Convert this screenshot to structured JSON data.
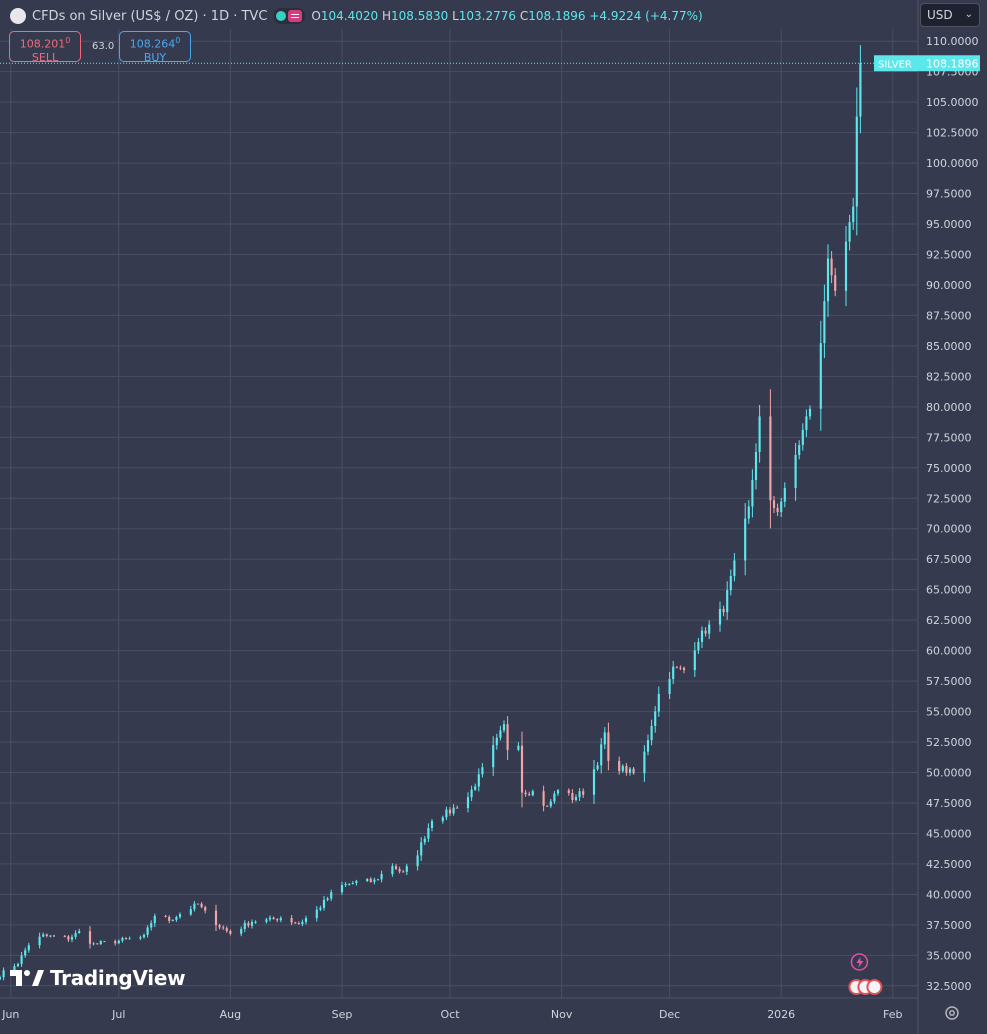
{
  "header": {
    "title": "CFDs on Silver (US$ / OZ) · 1D · TVC",
    "ohlc": [
      {
        "k": "O",
        "v": "104.4020"
      },
      {
        "k": "H",
        "v": "108.5830"
      },
      {
        "k": "L",
        "v": "103.2776"
      },
      {
        "k": "C",
        "v": "108.1896"
      }
    ],
    "change": "+4.9224 (+4.77%)"
  },
  "trade": {
    "sell_price": "108.201",
    "sell_sup": "0",
    "sell_label": "SELL",
    "buy_price": "108.264",
    "buy_sup": "0",
    "buy_label": "BUY",
    "spread": "63.0"
  },
  "currency": {
    "label": "USD"
  },
  "price_label": {
    "name": "SILVER",
    "value": "108.1896"
  },
  "brand": {
    "name": "TradingView"
  },
  "icons": [
    "settings-icon",
    "flash-icon",
    "events-icon",
    "tradingview-logo-icon"
  ],
  "colors": {
    "background": "#363a4e",
    "up": "#5ce7ec",
    "down": "#f2a5a7",
    "grid": "#4a4e62",
    "axis_text": "#d1d4dc",
    "price_tag": "#5ce7ec"
  },
  "chart_data": {
    "type": "candlestick",
    "title": "CFDs on Silver (US$ / OZ)",
    "y_axis": {
      "position": "right",
      "range": [
        31.5,
        111
      ],
      "ticks": [
        32.5,
        35,
        37.5,
        40,
        42.5,
        45,
        47.5,
        50,
        52.5,
        55,
        57.5,
        60,
        62.5,
        65,
        67.5,
        70,
        72.5,
        75,
        77.5,
        80,
        82.5,
        85,
        87.5,
        90,
        92.5,
        95,
        97.5,
        100,
        102.5,
        105,
        107.5,
        110
      ],
      "tick_labels": [
        "32.5000",
        "35.0000",
        "37.5000",
        "40.0000",
        "42.5000",
        "45.0000",
        "47.5000",
        "50.0000",
        "52.5000",
        "55.0000",
        "57.5000",
        "60.0000",
        "62.5000",
        "65.0000",
        "67.5000",
        "70.0000",
        "72.5000",
        "75.0000",
        "77.5000",
        "80.0000",
        "82.5000",
        "85.0000",
        "87.5000",
        "90.0000",
        "92.5000",
        "95.0000",
        "97.5000",
        "100.0000",
        "102.5000",
        "105.0000",
        "107.5000",
        "110.0000"
      ]
    },
    "x_axis": {
      "start": "2025-05-29",
      "end": "2026-02-08",
      "labels": [
        {
          "date": "2025-06-01",
          "text": "Jun"
        },
        {
          "date": "2025-07-01",
          "text": "Jul"
        },
        {
          "date": "2025-08-01",
          "text": "Aug"
        },
        {
          "date": "2025-09-01",
          "text": "Sep"
        },
        {
          "date": "2025-10-01",
          "text": "Oct"
        },
        {
          "date": "2025-11-01",
          "text": "Nov"
        },
        {
          "date": "2025-12-01",
          "text": "Dec"
        },
        {
          "date": "2026-01-01",
          "text": "2026"
        },
        {
          "date": "2026-02-01",
          "text": "Feb"
        }
      ]
    },
    "grid": true,
    "last_price": 108.1896,
    "close_anchors": [
      [
        "2025-05-29",
        33.4
      ],
      [
        "2025-06-03",
        34.4
      ],
      [
        "2025-06-06",
        35.9
      ],
      [
        "2025-06-10",
        36.6
      ],
      [
        "2025-06-17",
        36.4
      ],
      [
        "2025-06-20",
        36.9
      ],
      [
        "2025-06-24",
        35.9
      ],
      [
        "2025-07-01",
        36.2
      ],
      [
        "2025-07-08",
        36.5
      ],
      [
        "2025-07-11",
        38.3
      ],
      [
        "2025-07-15",
        37.9
      ],
      [
        "2025-07-18",
        38.4
      ],
      [
        "2025-07-23",
        39.2
      ],
      [
        "2025-07-25",
        38.5
      ],
      [
        "2025-07-29",
        37.4
      ],
      [
        "2025-08-01",
        36.8
      ],
      [
        "2025-08-07",
        37.8
      ],
      [
        "2025-08-12",
        37.9
      ],
      [
        "2025-08-15",
        38.1
      ],
      [
        "2025-08-20",
        37.6
      ],
      [
        "2025-08-25",
        38.7
      ],
      [
        "2025-08-29",
        40.0
      ],
      [
        "2025-09-01",
        40.7
      ],
      [
        "2025-09-05",
        41.0
      ],
      [
        "2025-09-10",
        41.1
      ],
      [
        "2025-09-15",
        42.4
      ],
      [
        "2025-09-18",
        41.7
      ],
      [
        "2025-09-22",
        43.4
      ],
      [
        "2025-09-26",
        46.2
      ],
      [
        "2025-10-01",
        46.8
      ],
      [
        "2025-10-06",
        48.0
      ],
      [
        "2025-10-09",
        49.6
      ],
      [
        "2025-10-13",
        52.0
      ],
      [
        "2025-10-16",
        53.8
      ],
      [
        "2025-10-17",
        52.0
      ],
      [
        "2025-10-20",
        52.5
      ],
      [
        "2025-10-21",
        48.5
      ],
      [
        "2025-10-24",
        48.4
      ],
      [
        "2025-10-28",
        47.1
      ],
      [
        "2025-10-31",
        48.7
      ],
      [
        "2025-11-04",
        47.9
      ],
      [
        "2025-11-07",
        48.4
      ],
      [
        "2025-11-11",
        50.9
      ],
      [
        "2025-11-13",
        53.2
      ],
      [
        "2025-11-14",
        50.7
      ],
      [
        "2025-11-18",
        50.3
      ],
      [
        "2025-11-21",
        49.9
      ],
      [
        "2025-11-24",
        51.6
      ],
      [
        "2025-11-28",
        56.4
      ],
      [
        "2025-12-02",
        58.5
      ],
      [
        "2025-12-05",
        58.4
      ],
      [
        "2025-12-09",
        61.0
      ],
      [
        "2025-12-12",
        62.0
      ],
      [
        "2025-12-16",
        63.5
      ],
      [
        "2025-12-19",
        67.0
      ],
      [
        "2025-12-23",
        71.6
      ],
      [
        "2025-12-26",
        79.0
      ],
      [
        "2025-12-29",
        72.0
      ],
      [
        "2025-12-31",
        71.6
      ],
      [
        "2026-01-02",
        73.0
      ],
      [
        "2026-01-05",
        76.0
      ],
      [
        "2026-01-07",
        78.0
      ],
      [
        "2026-01-09",
        80.0
      ],
      [
        "2026-01-12",
        85.0
      ],
      [
        "2026-01-14",
        92.5
      ],
      [
        "2026-01-15",
        91.0
      ],
      [
        "2026-01-16",
        89.0
      ],
      [
        "2026-01-19",
        93.0
      ],
      [
        "2026-01-20",
        95.0
      ],
      [
        "2026-01-21",
        96.0
      ],
      [
        "2026-01-22",
        103.3
      ],
      [
        "2026-01-23",
        108.1896
      ]
    ]
  }
}
